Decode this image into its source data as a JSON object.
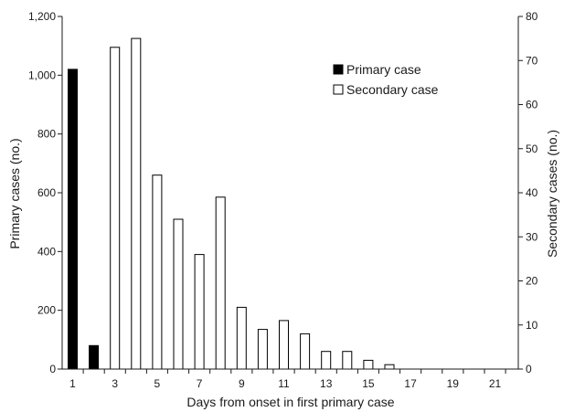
{
  "chart_data": {
    "type": "bar",
    "x": [
      1,
      2,
      3,
      4,
      5,
      6,
      7,
      8,
      9,
      10,
      11,
      12,
      13,
      14,
      15,
      16,
      17,
      18,
      19,
      20,
      21
    ],
    "x_tick_labels": [
      "1",
      "3",
      "5",
      "7",
      "9",
      "11",
      "13",
      "15",
      "17",
      "19",
      "21"
    ],
    "xlabel": "Days from onset in first primary case",
    "ylabel_left": "Primary cases (no.)",
    "ylabel_right": "Secondary cases (no.)",
    "ylim_left": [
      0,
      1200
    ],
    "ylim_right": [
      0,
      80
    ],
    "y_left_tick_labels": [
      "0",
      "200",
      "400",
      "600",
      "800",
      "1,000",
      "1,200"
    ],
    "y_right_tick_labels": [
      "0",
      "10",
      "20",
      "30",
      "40",
      "50",
      "60",
      "70",
      "80"
    ],
    "legend_position": "top-right",
    "grid": false,
    "series": [
      {
        "name": "Primary case",
        "axis": "left",
        "color": "#000000",
        "values": [
          1020,
          80,
          0,
          0,
          0,
          0,
          0,
          0,
          0,
          0,
          0,
          0,
          0,
          0,
          0,
          0,
          0,
          0,
          0,
          0,
          0
        ]
      },
      {
        "name": "Secondary case",
        "axis": "right",
        "color": "#ffffff",
        "values": [
          0,
          0,
          73,
          75,
          44,
          34,
          26,
          39,
          14,
          9,
          11,
          8,
          4,
          4,
          2,
          1,
          0,
          0,
          0,
          0,
          0
        ]
      }
    ]
  }
}
